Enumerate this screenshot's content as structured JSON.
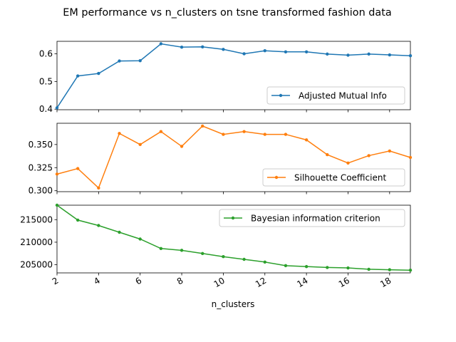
{
  "chart_data": {
    "title": "EM performance vs n_clusters on tsne transformed fashion data",
    "type": "line",
    "x": [
      2,
      3,
      4,
      5,
      6,
      7,
      8,
      9,
      10,
      11,
      12,
      13,
      14,
      15,
      16,
      17,
      18,
      19
    ],
    "xlabel": "n_clusters",
    "xlim": [
      2,
      19
    ],
    "xticks": [
      "2",
      "4",
      "6",
      "8",
      "10",
      "12",
      "14",
      "16",
      "18"
    ],
    "subplots": [
      {
        "series": [
          {
            "name": "Adjusted Mutual Info",
            "color": "#1f77b4",
            "values": [
              0.405,
              0.52,
              0.529,
              0.574,
              0.575,
              0.636,
              0.624,
              0.625,
              0.616,
              0.6,
              0.611,
              0.607,
              0.607,
              0.599,
              0.595,
              0.599,
              0.596,
              0.593
            ]
          }
        ],
        "ylim": [
          0.398,
          0.645
        ],
        "yticks": [
          "0.4",
          "0.5",
          "0.6"
        ],
        "legend": "lower-right"
      },
      {
        "series": [
          {
            "name": "Silhouette Coefficient",
            "color": "#ff7f0e",
            "values": [
              0.318,
              0.324,
              0.303,
              0.362,
              0.35,
              0.364,
              0.348,
              0.37,
              0.361,
              0.364,
              0.361,
              0.361,
              0.355,
              0.339,
              0.33,
              0.338,
              0.343,
              0.336
            ]
          }
        ],
        "ylim": [
          0.299,
          0.373
        ],
        "yticks": [
          "0.300",
          "0.325",
          "0.350"
        ],
        "legend": "lower-right"
      },
      {
        "series": [
          {
            "name": "Bayesian information criterion",
            "color": "#2ca02c",
            "values": [
              218200,
              214900,
              213700,
              212200,
              210700,
              208600,
              208200,
              207500,
              206800,
              206200,
              205600,
              204800,
              204600,
              204400,
              204300,
              204000,
              203900,
              203800
            ]
          }
        ],
        "ylim": [
          203200,
          218200
        ],
        "yticks": [
          "205000",
          "210000",
          "215000"
        ],
        "legend": "upper-right"
      }
    ]
  }
}
